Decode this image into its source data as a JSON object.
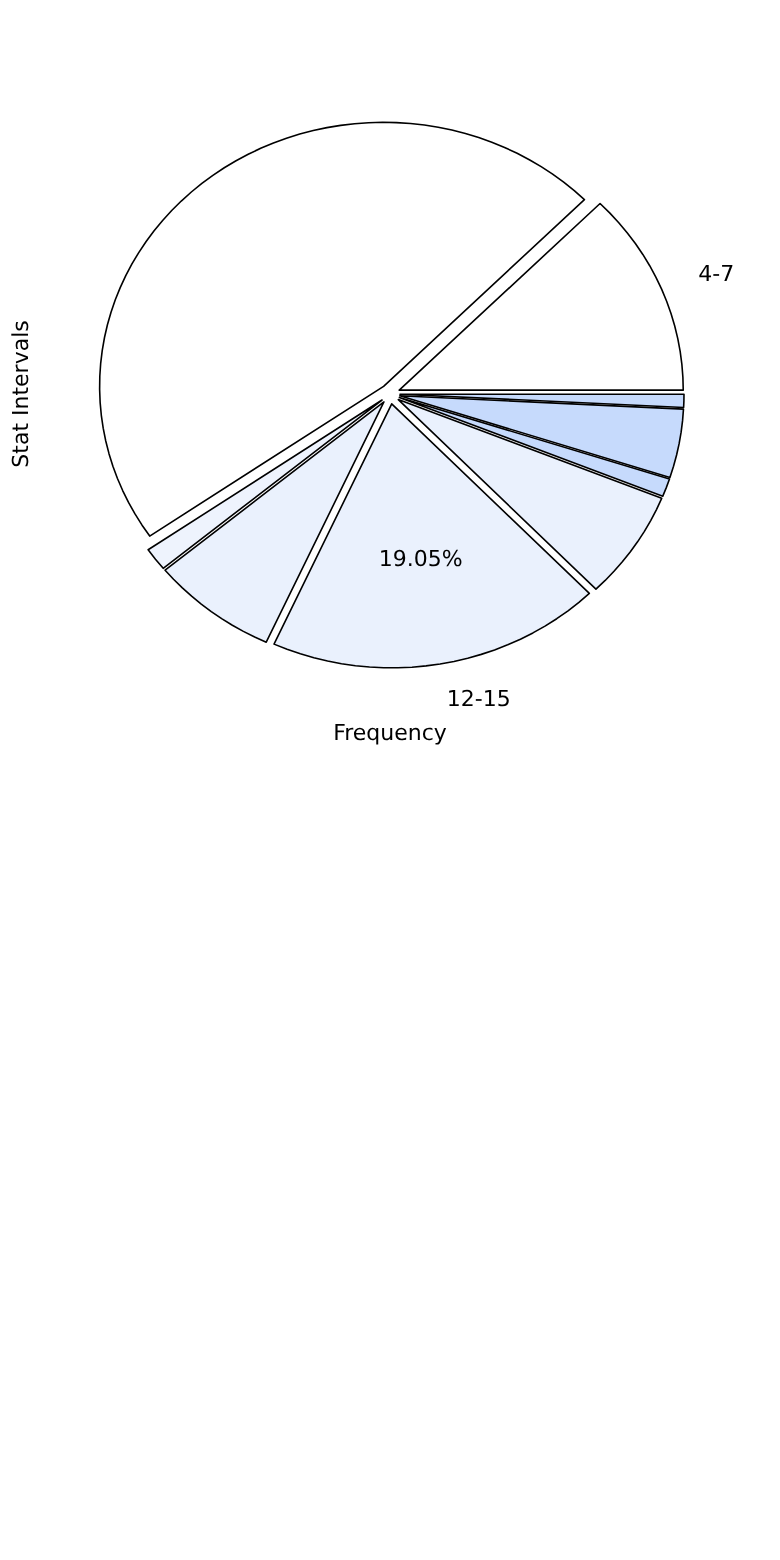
{
  "chart_data": {
    "type": "pie",
    "xlabel": "Frequency",
    "ylabel": "Stat Intervals",
    "categories": [
      "4-7",
      null,
      null,
      null,
      "12-15",
      null,
      null,
      null,
      null
    ],
    "values": [
      12.5,
      47.1,
      1.4,
      7.2,
      19.05,
      6.65,
      1.1,
      4.2,
      0.8
    ],
    "colors": [
      "#ffffff",
      "#ffffff",
      "#eef3fd",
      "#eaf1fd",
      "#eaf1fd",
      "#eaf1fd",
      "#c6dafc",
      "#c6dafc",
      "#c6dafc"
    ],
    "value_labels": [
      null,
      null,
      null,
      null,
      "19.05%",
      null,
      null,
      null,
      null
    ]
  }
}
